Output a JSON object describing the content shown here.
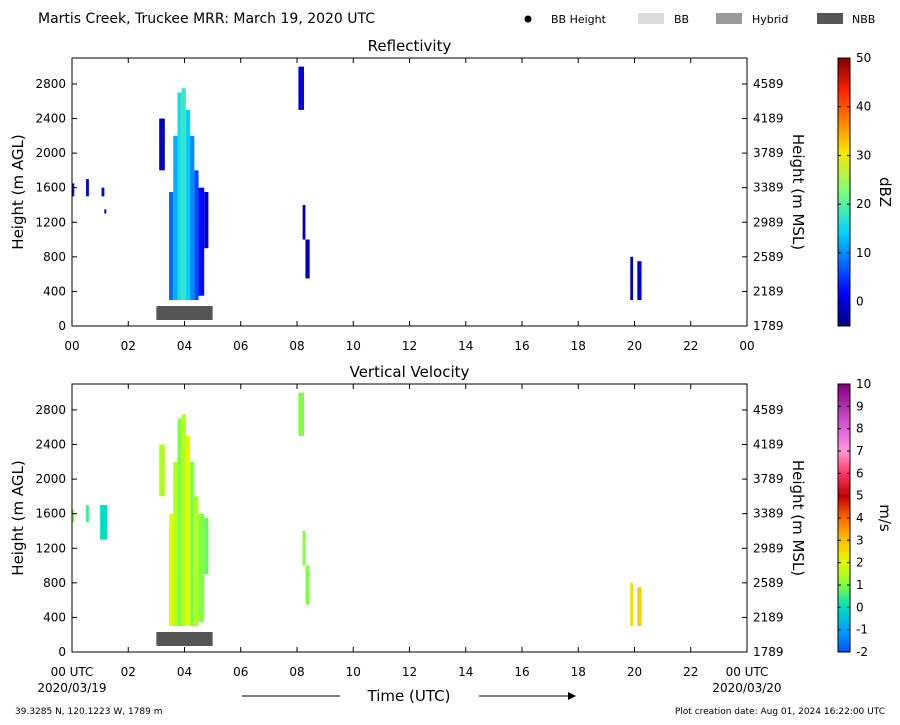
{
  "header": {
    "title": "Martis Creek, Truckee MRR:  March 19, 2020 UTC",
    "legend": [
      {
        "label": "BB Height",
        "kind": "dot",
        "color": "#000000"
      },
      {
        "label": "BB",
        "kind": "box",
        "color": "#dcdcdc"
      },
      {
        "label": "Hybrid",
        "kind": "box",
        "color": "#9a9a9a"
      },
      {
        "label": "NBB",
        "kind": "box",
        "color": "#555555"
      }
    ]
  },
  "footer": {
    "location": "39.3285 N, 120.1223 W, 1789 m",
    "creation": "Plot creation date: Aug 01, 2024 16:22:00 UTC",
    "time_label": "Time (UTC)",
    "start_date": "2020/03/19",
    "end_date": "2020/03/20"
  },
  "chart_data": [
    {
      "type": "heatmap",
      "title": "Reflectivity",
      "xlabel": "",
      "ylabel": "Height (m AGL)",
      "ylabel_right": "Height (m MSL)",
      "xlim": [
        0,
        24
      ],
      "ylim": [
        0,
        3100
      ],
      "xticks": [
        "00",
        "02",
        "04",
        "06",
        "08",
        "10",
        "12",
        "14",
        "16",
        "18",
        "20",
        "22",
        "00"
      ],
      "yticks": [
        0,
        400,
        800,
        1200,
        1600,
        2000,
        2400,
        2800
      ],
      "yticks_right": [
        "1789",
        "2189",
        "2589",
        "2989",
        "3389",
        "3789",
        "4189",
        "4589"
      ],
      "colorbar": {
        "label": "dBZ",
        "min": -5,
        "max": 50,
        "ticks": [
          0,
          10,
          20,
          30,
          40,
          50
        ]
      },
      "bright_band": [
        {
          "type": "NBB",
          "start": 3.0,
          "end": 5.0
        }
      ],
      "echoes": [
        {
          "t0": 0.0,
          "t1": 0.08,
          "h0": 1500,
          "h1": 1650,
          "value": 0
        },
        {
          "t0": 0.5,
          "t1": 0.6,
          "h0": 1500,
          "h1": 1700,
          "value": 0
        },
        {
          "t0": 1.05,
          "t1": 1.15,
          "h0": 1500,
          "h1": 1600,
          "value": 1
        },
        {
          "t0": 1.15,
          "t1": 1.22,
          "h0": 1300,
          "h1": 1350,
          "value": 0
        },
        {
          "t0": 3.1,
          "t1": 3.3,
          "h0": 1800,
          "h1": 2400,
          "value": -2
        },
        {
          "t0": 3.45,
          "t1": 3.6,
          "h0": 300,
          "h1": 1550,
          "value": 8
        },
        {
          "t0": 3.6,
          "t1": 3.75,
          "h0": 300,
          "h1": 2200,
          "value": 12
        },
        {
          "t0": 3.75,
          "t1": 3.9,
          "h0": 300,
          "h1": 2700,
          "value": 16
        },
        {
          "t0": 3.9,
          "t1": 4.05,
          "h0": 300,
          "h1": 2750,
          "value": 18
        },
        {
          "t0": 4.05,
          "t1": 4.2,
          "h0": 300,
          "h1": 2500,
          "value": 14
        },
        {
          "t0": 4.2,
          "t1": 4.35,
          "h0": 300,
          "h1": 2200,
          "value": 10
        },
        {
          "t0": 4.35,
          "t1": 4.5,
          "h0": 300,
          "h1": 1800,
          "value": 6
        },
        {
          "t0": 4.5,
          "t1": 4.7,
          "h0": 350,
          "h1": 1600,
          "value": 2
        },
        {
          "t0": 4.7,
          "t1": 4.85,
          "h0": 900,
          "h1": 1550,
          "value": -1
        },
        {
          "t0": 8.05,
          "t1": 8.25,
          "h0": 2500,
          "h1": 3000,
          "value": 0
        },
        {
          "t0": 8.2,
          "t1": 8.3,
          "h0": 1000,
          "h1": 1400,
          "value": -2
        },
        {
          "t0": 8.3,
          "t1": 8.45,
          "h0": 550,
          "h1": 1000,
          "value": -2
        },
        {
          "t0": 19.85,
          "t1": 19.95,
          "h0": 300,
          "h1": 800,
          "value": -2
        },
        {
          "t0": 20.1,
          "t1": 20.25,
          "h0": 300,
          "h1": 750,
          "value": -1
        }
      ]
    },
    {
      "type": "heatmap",
      "title": "Vertical Velocity",
      "xlabel": "Time (UTC)",
      "ylabel": "Height (m AGL)",
      "ylabel_right": "Height (m MSL)",
      "xlim": [
        0,
        24
      ],
      "ylim": [
        0,
        3100
      ],
      "xticks": [
        "00 UTC",
        "02",
        "04",
        "06",
        "08",
        "10",
        "12",
        "14",
        "16",
        "18",
        "20",
        "22",
        "00 UTC"
      ],
      "yticks": [
        0,
        400,
        800,
        1200,
        1600,
        2000,
        2400,
        2800
      ],
      "yticks_right": [
        "1789",
        "2189",
        "2589",
        "2989",
        "3389",
        "3789",
        "4189",
        "4589"
      ],
      "colorbar": {
        "label": "m/s",
        "min": -2,
        "max": 10,
        "ticks": [
          -2,
          -1,
          0,
          1,
          2,
          3,
          4,
          5,
          6,
          7,
          8,
          9,
          10
        ]
      },
      "bright_band": [
        {
          "type": "NBB",
          "start": 3.0,
          "end": 5.0
        }
      ],
      "echoes": [
        {
          "t0": 0.0,
          "t1": 0.08,
          "h0": 1500,
          "h1": 1650,
          "value": 1
        },
        {
          "t0": 0.5,
          "t1": 0.6,
          "h0": 1500,
          "h1": 1700,
          "value": 0.5
        },
        {
          "t0": 1.0,
          "t1": 1.25,
          "h0": 1300,
          "h1": 1700,
          "value": 0
        },
        {
          "t0": 3.1,
          "t1": 3.3,
          "h0": 1800,
          "h1": 2400,
          "value": 1.5
        },
        {
          "t0": 3.45,
          "t1": 3.6,
          "h0": 300,
          "h1": 1600,
          "value": 2
        },
        {
          "t0": 3.6,
          "t1": 3.75,
          "h0": 300,
          "h1": 2200,
          "value": 1.5
        },
        {
          "t0": 3.75,
          "t1": 3.9,
          "h0": 300,
          "h1": 2700,
          "value": 1
        },
        {
          "t0": 3.9,
          "t1": 4.05,
          "h0": 300,
          "h1": 2750,
          "value": 1.5
        },
        {
          "t0": 4.05,
          "t1": 4.2,
          "h0": 300,
          "h1": 2500,
          "value": 2
        },
        {
          "t0": 4.2,
          "t1": 4.35,
          "h0": 300,
          "h1": 2200,
          "value": 1
        },
        {
          "t0": 4.35,
          "t1": 4.5,
          "h0": 300,
          "h1": 1800,
          "value": 1.5
        },
        {
          "t0": 4.5,
          "t1": 4.7,
          "h0": 350,
          "h1": 1600,
          "value": 1
        },
        {
          "t0": 4.7,
          "t1": 4.85,
          "h0": 900,
          "h1": 1550,
          "value": 0.8
        },
        {
          "t0": 8.05,
          "t1": 8.25,
          "h0": 2500,
          "h1": 3000,
          "value": 1
        },
        {
          "t0": 8.2,
          "t1": 8.3,
          "h0": 1000,
          "h1": 1400,
          "value": 1
        },
        {
          "t0": 8.3,
          "t1": 8.45,
          "h0": 550,
          "h1": 1000,
          "value": 1
        },
        {
          "t0": 19.85,
          "t1": 19.95,
          "h0": 300,
          "h1": 800,
          "value": 2.5
        },
        {
          "t0": 20.1,
          "t1": 20.25,
          "h0": 300,
          "h1": 750,
          "value": 2.8
        }
      ]
    }
  ]
}
